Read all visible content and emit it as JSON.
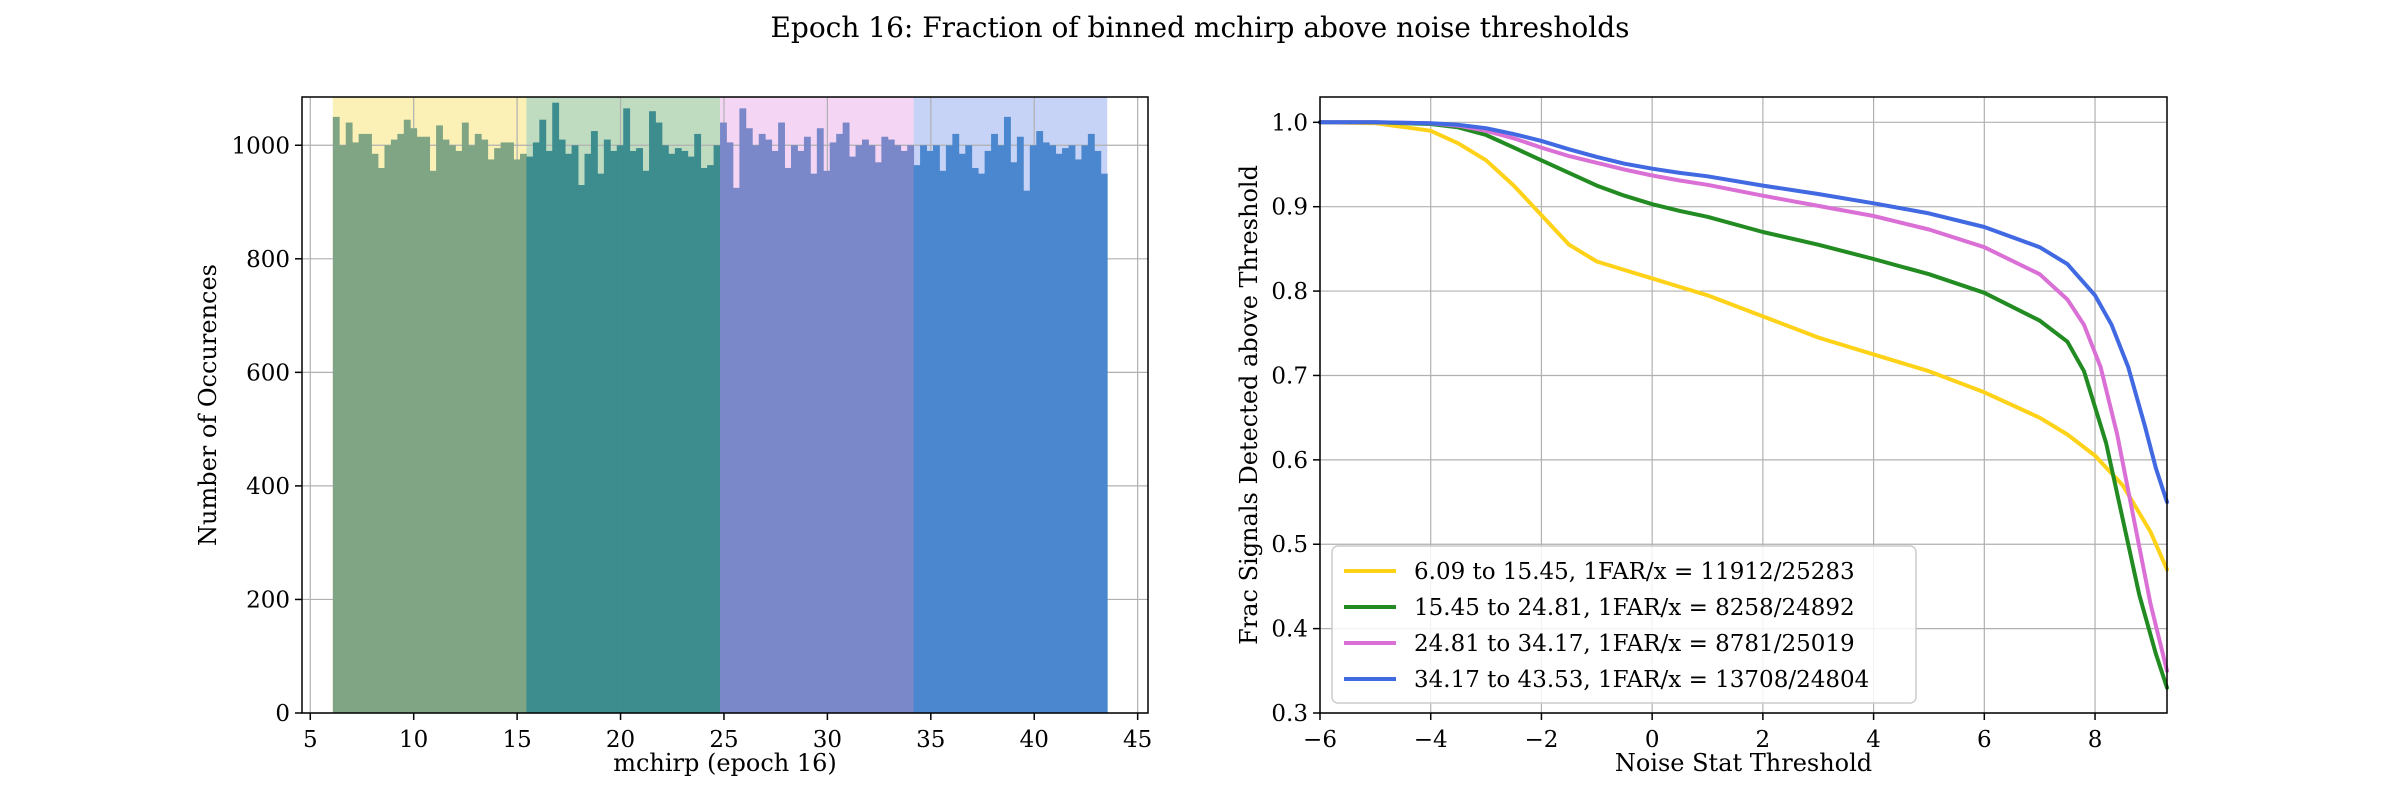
{
  "figure": {
    "title": "Epoch 16: Fraction of binned mchirp above noise thresholds"
  },
  "chart_data": [
    {
      "type": "bar",
      "subtype": "histogram",
      "xlabel": "mchirp (epoch 16)",
      "ylabel": "Number of Occurences",
      "xlim": [
        4.6,
        45.5
      ],
      "ylim": [
        0,
        1085
      ],
      "xticks": [
        5,
        10,
        15,
        20,
        25,
        30,
        35,
        40,
        45
      ],
      "yticks": [
        0,
        200,
        400,
        600,
        800,
        1000
      ],
      "grid": true,
      "bins": {
        "start": 6.09,
        "end": 43.53,
        "count": 120
      },
      "counts": [
        1050,
        1000,
        1040,
        1005,
        1020,
        1020,
        985,
        960,
        1000,
        1010,
        1020,
        1045,
        1030,
        1015,
        1015,
        955,
        1035,
        1010,
        1000,
        990,
        1040,
        1000,
        1020,
        1010,
        975,
        995,
        1005,
        1005,
        975,
        985,
        980,
        1005,
        1045,
        990,
        1075,
        1010,
        985,
        1000,
        930,
        985,
        1025,
        950,
        1010,
        990,
        1000,
        1065,
        990,
        995,
        955,
        1060,
        1040,
        1000,
        985,
        995,
        990,
        980,
        1020,
        960,
        965,
        1000,
        1040,
        1005,
        925,
        1065,
        1030,
        1000,
        1020,
        1010,
        990,
        1040,
        960,
        1000,
        990,
        1015,
        950,
        1030,
        955,
        1005,
        1020,
        1040,
        980,
        1000,
        1010,
        1000,
        970,
        1015,
        1010,
        1000,
        990,
        1000,
        965,
        1000,
        990,
        1000,
        955,
        1000,
        1020,
        985,
        1000,
        960,
        950,
        990,
        1020,
        1000,
        1050,
        970,
        1015,
        920,
        1000,
        1025,
        1005,
        1000,
        985,
        995,
        1000,
        975,
        1000,
        1020,
        990,
        950
      ],
      "bin_ranges": [
        {
          "from": 6.09,
          "to": 15.45,
          "color": "#f2d10c"
        },
        {
          "from": 15.45,
          "to": 24.81,
          "color": "#2e8b2e"
        },
        {
          "from": 24.81,
          "to": 34.17,
          "color": "#d974d9"
        },
        {
          "from": 34.17,
          "to": 43.53,
          "color": "#4169e1"
        }
      ],
      "bar_colors": [
        "#80a584",
        "#3d8c8e",
        "#7a87c8",
        "#4a87cf"
      ]
    },
    {
      "type": "line",
      "xlabel": "Noise Stat Threshold",
      "ylabel": "Frac Signals Detected above Threshold",
      "xlim": [
        -6,
        9.3
      ],
      "ylim": [
        0.3,
        1.03
      ],
      "xticks": [
        -6,
        -4,
        -2,
        0,
        2,
        4,
        6,
        8
      ],
      "yticks": [
        0.3,
        0.4,
        0.5,
        0.6,
        0.7,
        0.8,
        0.9,
        1.0
      ],
      "grid": true,
      "legend_position": "lower-left",
      "series": [
        {
          "name": "6.09 to 15.45, 1FAR/x = 11912/25283",
          "color": "#ffd21a",
          "x": [
            -6,
            -5,
            -4,
            -3.5,
            -3,
            -2.5,
            -2,
            -1.5,
            -1,
            -0.5,
            0,
            0.5,
            1,
            2,
            3,
            4,
            5,
            6,
            7,
            7.5,
            8,
            8.5,
            9,
            9.3
          ],
          "y": [
            1.0,
            0.999,
            0.99,
            0.975,
            0.955,
            0.925,
            0.89,
            0.855,
            0.835,
            0.825,
            0.815,
            0.805,
            0.795,
            0.77,
            0.745,
            0.725,
            0.705,
            0.68,
            0.65,
            0.63,
            0.605,
            0.57,
            0.515,
            0.47
          ]
        },
        {
          "name": "15.45 to 24.81, 1FAR/x = 8258/24892",
          "color": "#228b22",
          "x": [
            -6,
            -5,
            -4,
            -3.5,
            -3,
            -2.5,
            -2,
            -1.5,
            -1,
            -0.5,
            0,
            0.5,
            1,
            2,
            3,
            4,
            5,
            6,
            7,
            7.5,
            7.8,
            8.2,
            8.5,
            8.8,
            9.1,
            9.3
          ],
          "y": [
            1.0,
            1.0,
            0.998,
            0.994,
            0.985,
            0.97,
            0.955,
            0.94,
            0.925,
            0.913,
            0.903,
            0.895,
            0.888,
            0.87,
            0.855,
            0.838,
            0.82,
            0.798,
            0.765,
            0.74,
            0.705,
            0.62,
            0.53,
            0.44,
            0.37,
            0.33
          ]
        },
        {
          "name": "24.81 to 34.17, 1FAR/x = 8781/25019",
          "color": "#da70d6",
          "x": [
            -6,
            -5,
            -4,
            -3.5,
            -3,
            -2.5,
            -2,
            -1.5,
            -1,
            -0.5,
            0,
            0.5,
            1,
            2,
            3,
            4,
            5,
            6,
            7,
            7.5,
            7.8,
            8.1,
            8.4,
            8.7,
            9.0,
            9.3
          ],
          "y": [
            1.0,
            1.0,
            0.999,
            0.996,
            0.99,
            0.981,
            0.97,
            0.96,
            0.952,
            0.944,
            0.937,
            0.931,
            0.926,
            0.913,
            0.901,
            0.889,
            0.873,
            0.852,
            0.82,
            0.79,
            0.76,
            0.71,
            0.63,
            0.53,
            0.43,
            0.35
          ]
        },
        {
          "name": "34.17 to 43.53, 1FAR/x = 13708/24804",
          "color": "#4169e1",
          "x": [
            -6,
            -5,
            -4,
            -3.5,
            -3,
            -2.5,
            -2,
            -1.5,
            -1,
            -0.5,
            0,
            0.5,
            1,
            2,
            3,
            4,
            5,
            6,
            7,
            7.5,
            8,
            8.3,
            8.6,
            8.9,
            9.1,
            9.3
          ],
          "y": [
            1.0,
            1.0,
            0.999,
            0.997,
            0.993,
            0.986,
            0.978,
            0.968,
            0.959,
            0.951,
            0.945,
            0.94,
            0.936,
            0.925,
            0.915,
            0.904,
            0.892,
            0.876,
            0.852,
            0.832,
            0.795,
            0.76,
            0.71,
            0.64,
            0.59,
            0.55
          ]
        }
      ]
    }
  ]
}
